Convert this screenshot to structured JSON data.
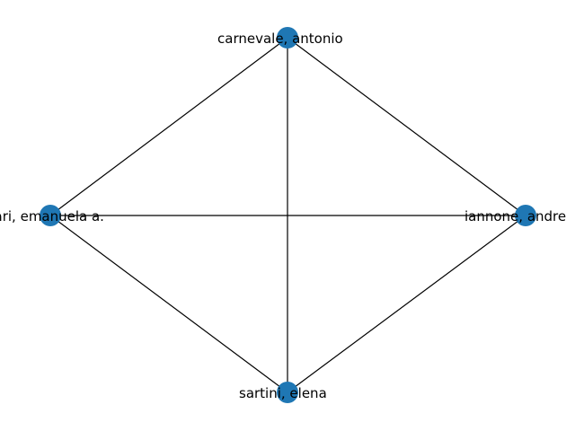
{
  "graph": {
    "node_color": "#1f77b4",
    "edge_color": "#000000",
    "nodes": [
      {
        "id": "carnevale",
        "label": "carnevale, antonio"
      },
      {
        "id": "iannone",
        "label": "iannone, andre"
      },
      {
        "id": "sartini",
        "label": "sartini, elena"
      },
      {
        "id": "gari",
        "label": "gari, emanuela a."
      }
    ],
    "edges": [
      [
        "carnevale",
        "gari"
      ],
      [
        "carnevale",
        "sartini"
      ],
      [
        "carnevale",
        "iannone"
      ],
      [
        "gari",
        "iannone"
      ],
      [
        "gari",
        "sartini"
      ],
      [
        "sartini",
        "iannone"
      ]
    ]
  }
}
